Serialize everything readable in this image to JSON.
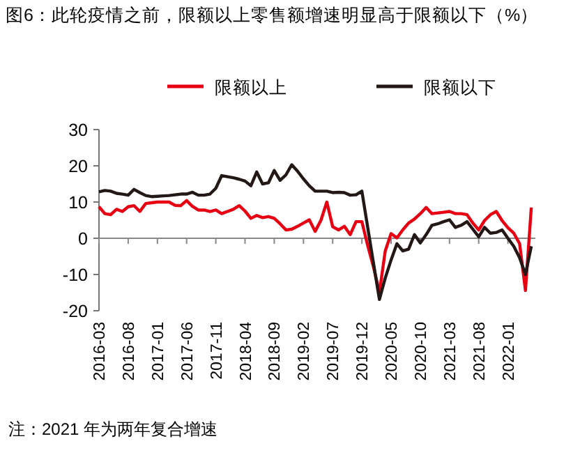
{
  "chart_data": {
    "type": "line",
    "title": "图6：此轮疫情之前，限额以上零售额增速明显高于限额以下（%）",
    "categories": [
      "2016-03",
      null,
      null,
      null,
      null,
      "2016-08",
      null,
      null,
      null,
      null,
      "2017-01",
      null,
      null,
      null,
      null,
      "2017-06",
      null,
      null,
      null,
      null,
      "2017-11",
      null,
      null,
      null,
      null,
      "2018-04",
      null,
      null,
      null,
      null,
      "2018-09",
      null,
      null,
      null,
      null,
      "2019-02",
      null,
      null,
      null,
      null,
      "2019-07",
      null,
      null,
      null,
      null,
      "2019-12",
      null,
      null,
      null,
      null,
      "2020-05",
      null,
      null,
      null,
      null,
      "2020-10",
      null,
      null,
      null,
      null,
      "2021-03",
      null,
      null,
      null,
      null,
      "2021-08",
      null,
      null,
      null,
      null,
      "2022-01",
      null,
      null,
      null,
      null
    ],
    "series": [
      {
        "name": "限额以上",
        "color": "#e60012",
        "values": [
          8.7,
          6.8,
          6.5,
          8,
          7.4,
          8.7,
          9,
          7.4,
          9.6,
          9.8,
          10,
          10,
          10,
          9.1,
          9,
          10.4,
          8.8,
          7.8,
          7.8,
          7.4,
          7.8,
          6.8,
          7.4,
          8,
          9,
          7.5,
          5.5,
          6.3,
          5.7,
          6,
          5.5,
          4,
          2.3,
          2.5,
          3.3,
          4.2,
          5.1,
          1.9,
          5,
          10,
          3.2,
          2.3,
          3.3,
          1,
          4.6,
          4.6,
          -2,
          -8,
          -15,
          -3.5,
          1.3,
          0.1,
          2.3,
          4.2,
          5.3,
          6.8,
          8.5,
          6.8,
          7,
          7.2,
          7.4,
          6.8,
          6.8,
          6.5,
          4.2,
          2.3,
          4.9,
          6.5,
          7.4,
          4.9,
          2.9,
          1.4,
          -1.5,
          -14.4,
          8.5
        ]
      },
      {
        "name": "限额以下",
        "color": "#231815",
        "values": [
          12.8,
          13.2,
          13,
          12.4,
          12.2,
          11.9,
          13.5,
          12.6,
          11.8,
          11.5,
          11.6,
          11.7,
          11.8,
          12,
          12.2,
          12.2,
          12.7,
          11.9,
          11.9,
          12.2,
          13.8,
          17.3,
          17,
          16.7,
          16.3,
          15.8,
          14.5,
          18.3,
          15,
          15.3,
          18.7,
          16,
          17.5,
          20.3,
          18.5,
          16.4,
          14.5,
          13,
          13,
          13,
          12.6,
          12.7,
          12.6,
          11.9,
          12,
          13,
          3,
          -7,
          -16.9,
          -11,
          -6,
          -1.5,
          -3.5,
          -3,
          1,
          -1.3,
          1,
          3.6,
          4,
          4.6,
          5.1,
          3,
          3.6,
          4.6,
          2.5,
          0.4,
          3,
          1.4,
          1.6,
          2.3,
          0,
          -2.2,
          -5.4,
          -10,
          -2.2
        ]
      }
    ],
    "ylim": [
      -20,
      30
    ],
    "yticks": [
      -20,
      -10,
      0,
      10,
      20,
      30
    ],
    "legend": "top",
    "annotations": [
      "注：2021 年为两年复合增速"
    ]
  }
}
